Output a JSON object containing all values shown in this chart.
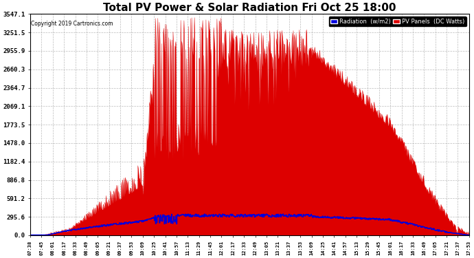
{
  "title": "Total PV Power & Solar Radiation Fri Oct 25 18:00",
  "copyright": "Copyright 2019 Cartronics.com",
  "yticks": [
    0.0,
    295.6,
    591.2,
    886.8,
    1182.4,
    1478.0,
    1773.5,
    2069.1,
    2364.7,
    2660.3,
    2955.9,
    3251.5,
    3547.1
  ],
  "ymax": 3547.1,
  "legend_radiation_label": "Radiation  (w/m2)",
  "legend_pv_label": "PV Panels  (DC Watts)",
  "radiation_color": "#0000dd",
  "pv_color": "#dd0000",
  "background_color": "#ffffff",
  "plot_bg_color": "#ffffff",
  "grid_color": "#aaaaaa",
  "title_fontsize": 11,
  "xtick_labels": [
    "07:38",
    "07:45",
    "08:01",
    "08:17",
    "08:33",
    "08:49",
    "09:05",
    "09:21",
    "09:37",
    "09:53",
    "10:09",
    "10:25",
    "10:41",
    "10:57",
    "11:13",
    "11:29",
    "11:45",
    "12:01",
    "12:17",
    "12:33",
    "12:49",
    "13:05",
    "13:21",
    "13:37",
    "13:53",
    "14:09",
    "14:25",
    "14:41",
    "14:57",
    "15:13",
    "15:29",
    "15:45",
    "16:01",
    "16:17",
    "16:33",
    "16:49",
    "17:05",
    "17:21",
    "17:37",
    "17:53"
  ]
}
